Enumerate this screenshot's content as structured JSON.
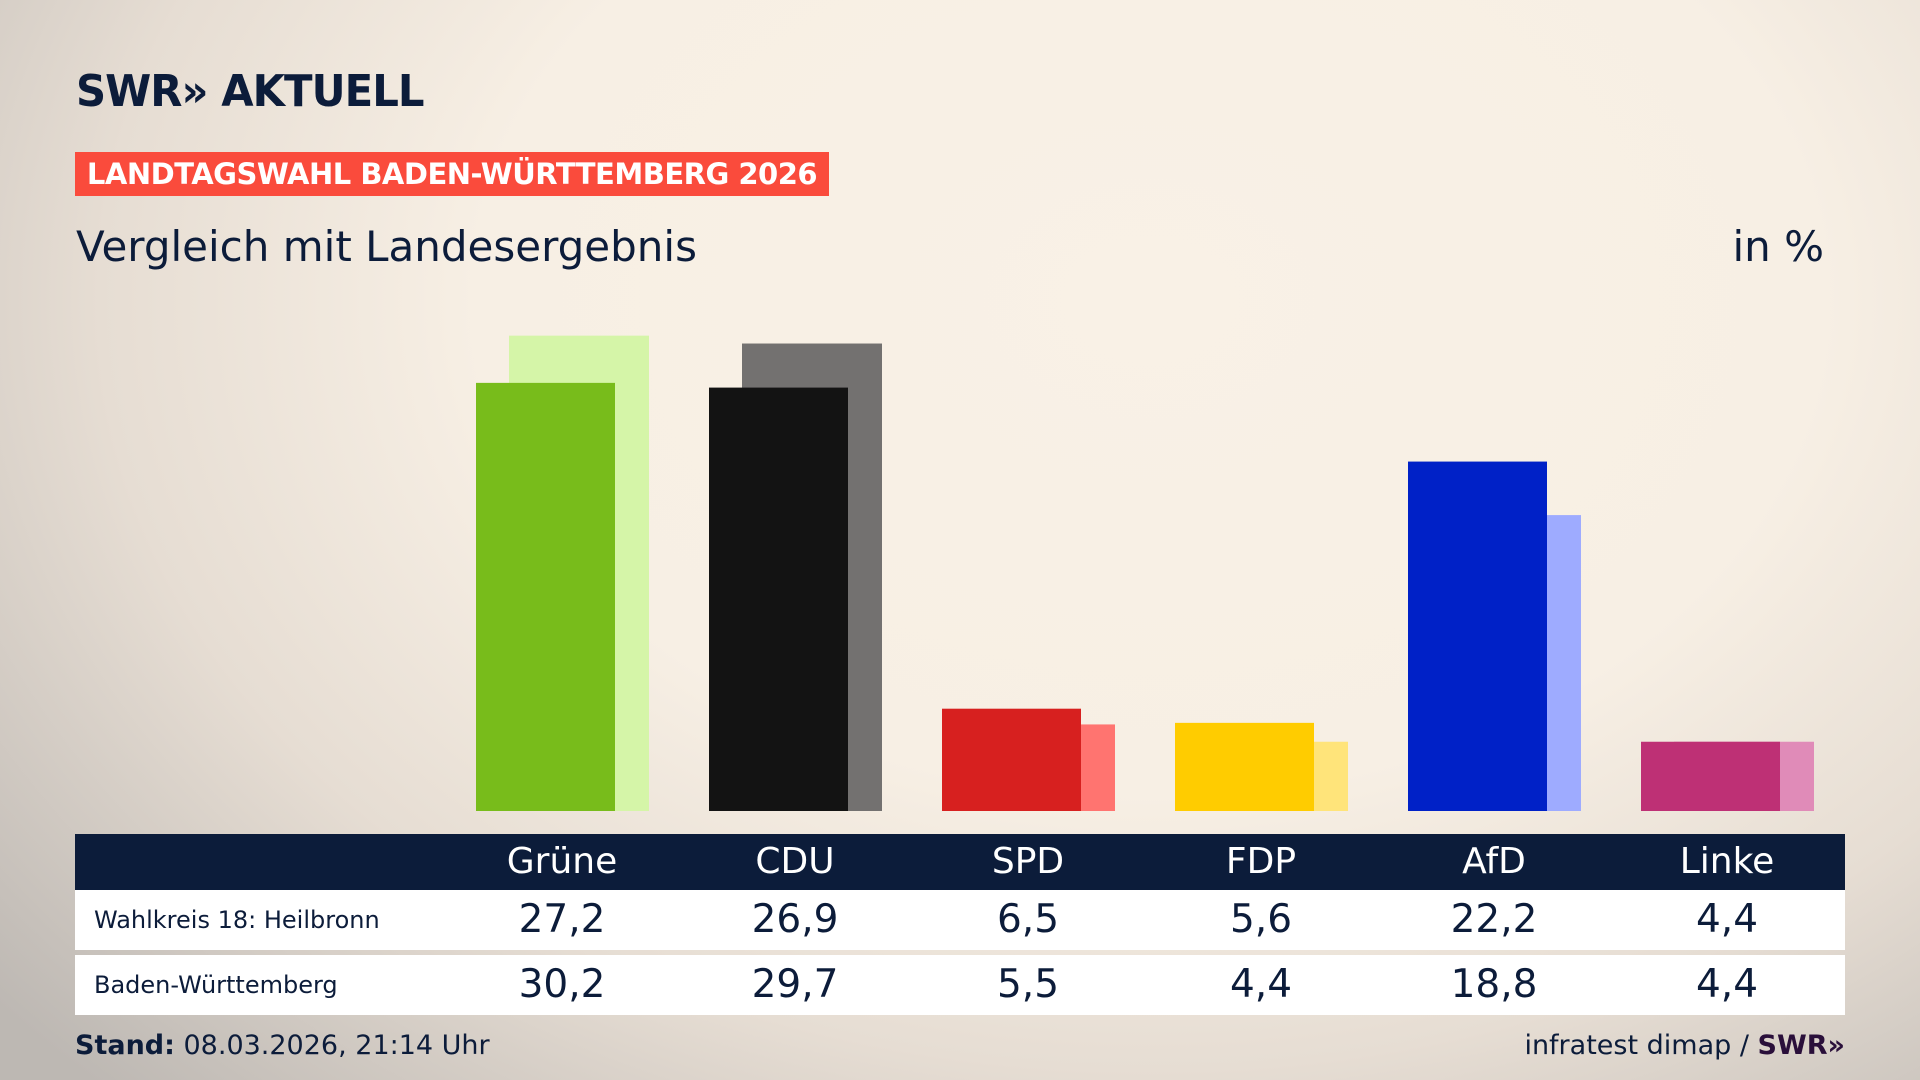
{
  "header": {
    "logo": "SWR» AKTUELL",
    "banner": "LANDTAGSWAHL BADEN-WÜRTTEMBERG 2026",
    "subtitle": "Vergleich mit Landesergebnis",
    "unit": "in %"
  },
  "chart_data": {
    "type": "bar",
    "title": "Vergleich mit Landesergebnis",
    "ylabel": "in %",
    "categories": [
      "Grüne",
      "CDU",
      "SPD",
      "FDP",
      "AfD",
      "Linke"
    ],
    "series": [
      {
        "name": "Wahlkreis 18: Heilbronn",
        "values": [
          27.2,
          26.9,
          6.5,
          5.6,
          22.2,
          4.4
        ]
      },
      {
        "name": "Baden-Württemberg",
        "values": [
          30.2,
          29.7,
          5.5,
          4.4,
          18.8,
          4.4
        ]
      }
    ],
    "colors": {
      "Grüne": [
        "#78bc1b",
        "#d5f5a8"
      ],
      "CDU": [
        "#131313",
        "#737170"
      ],
      "SPD": [
        "#d7201f",
        "#ff7470"
      ],
      "FDP": [
        "#ffcc00",
        "#ffe47a"
      ],
      "AfD": [
        "#0021c7",
        "#9eabff"
      ],
      "Linke": [
        "#be3075",
        "#e08bb8"
      ]
    },
    "grid": false
  },
  "table": {
    "rows": [
      {
        "label": "Wahlkreis 18: Heilbronn",
        "values": [
          "27,2",
          "26,9",
          "6,5",
          "5,6",
          "22,2",
          "4,4"
        ]
      },
      {
        "label": "Baden-Württemberg",
        "values": [
          "30,2",
          "29,7",
          "5,5",
          "4,4",
          "18,8",
          "4,4"
        ]
      }
    ]
  },
  "footer": {
    "stand_label": "Stand:",
    "stand_value": " 08.03.2026, 21:14 Uhr",
    "source": "infratest dimap / ",
    "source_logo": "SWR»"
  }
}
